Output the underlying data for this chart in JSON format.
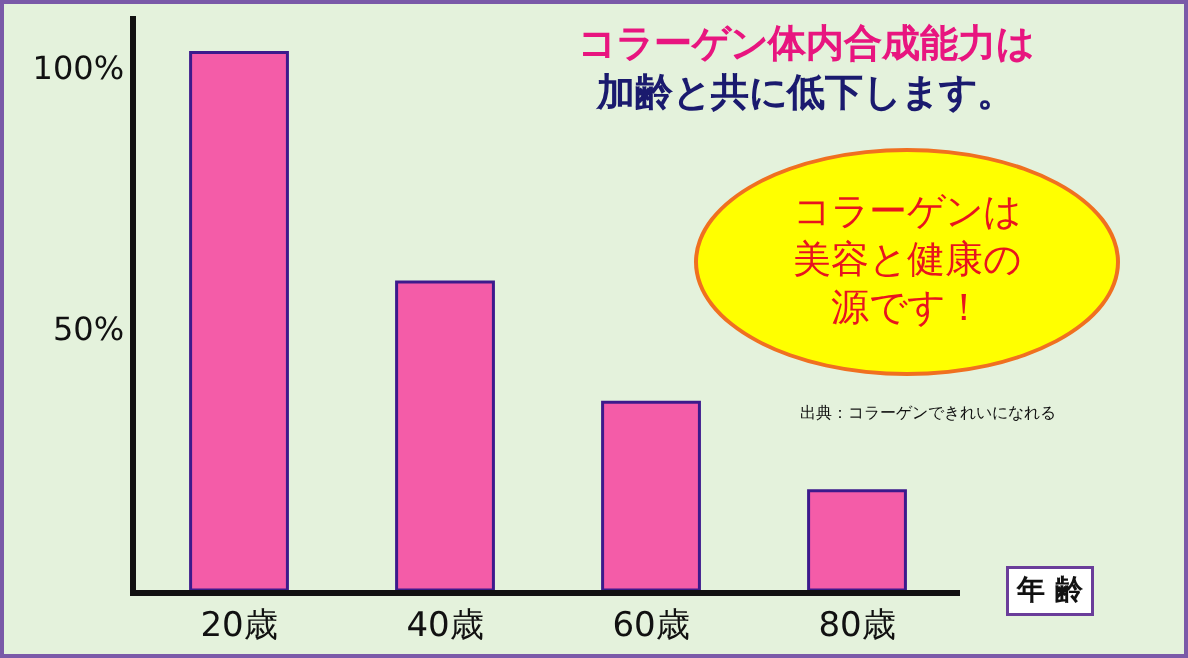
{
  "chart_data": {
    "type": "bar",
    "title": "コラーゲン体内合成能力は",
    "subtitle": "加齢と共に低下します。",
    "xlabel": "年 齢",
    "categories": [
      "20歳",
      "40歳",
      "60歳",
      "80歳"
    ],
    "values": [
      103,
      59,
      36,
      19
    ],
    "color": "#f45ca8",
    "ylim": [
      0,
      110
    ],
    "yticks": [
      {
        "value": 100,
        "label": "100%"
      },
      {
        "value": 50,
        "label": "50%"
      }
    ],
    "annotations": [
      "コラーゲンは美容と健康の源です！",
      "出典：コラーゲンできれいになれる"
    ]
  }
}
